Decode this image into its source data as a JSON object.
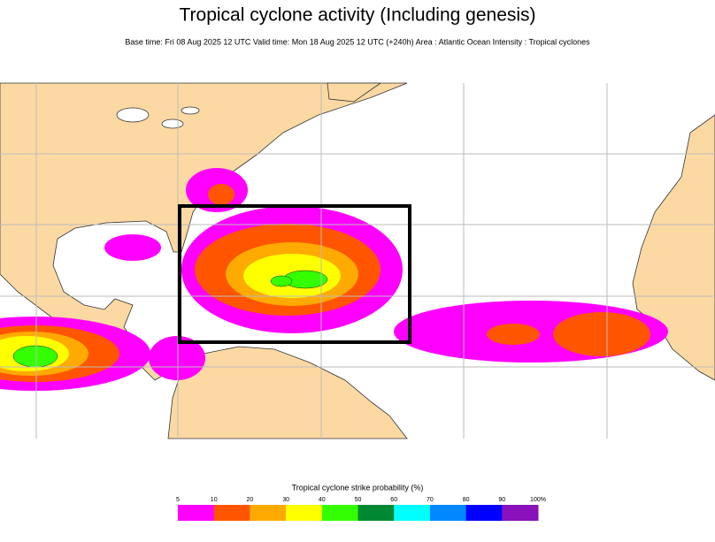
{
  "header": {
    "title": "Tropical cyclone activity (Including genesis)",
    "subtitle": "Base time: Fri 08 Aug 2025 12 UTC Valid time: Mon 18 Aug 2025 12 UTC (+240h) Area : Atlantic Ocean Intensity : Tropical cyclones"
  },
  "legend": {
    "title": "Tropical cyclone strike probability (%)",
    "ticks": [
      5,
      10,
      20,
      30,
      40,
      50,
      60,
      70,
      80,
      90,
      {
        "value": 100,
        "label": "100%"
      }
    ],
    "colors": [
      "#ff00ff",
      "#ff5500",
      "#ffaa00",
      "#ffff00",
      "#33ff00",
      "#008833",
      "#00ffff",
      "#0088ff",
      "#0000ff",
      "#8811bb"
    ]
  }
}
